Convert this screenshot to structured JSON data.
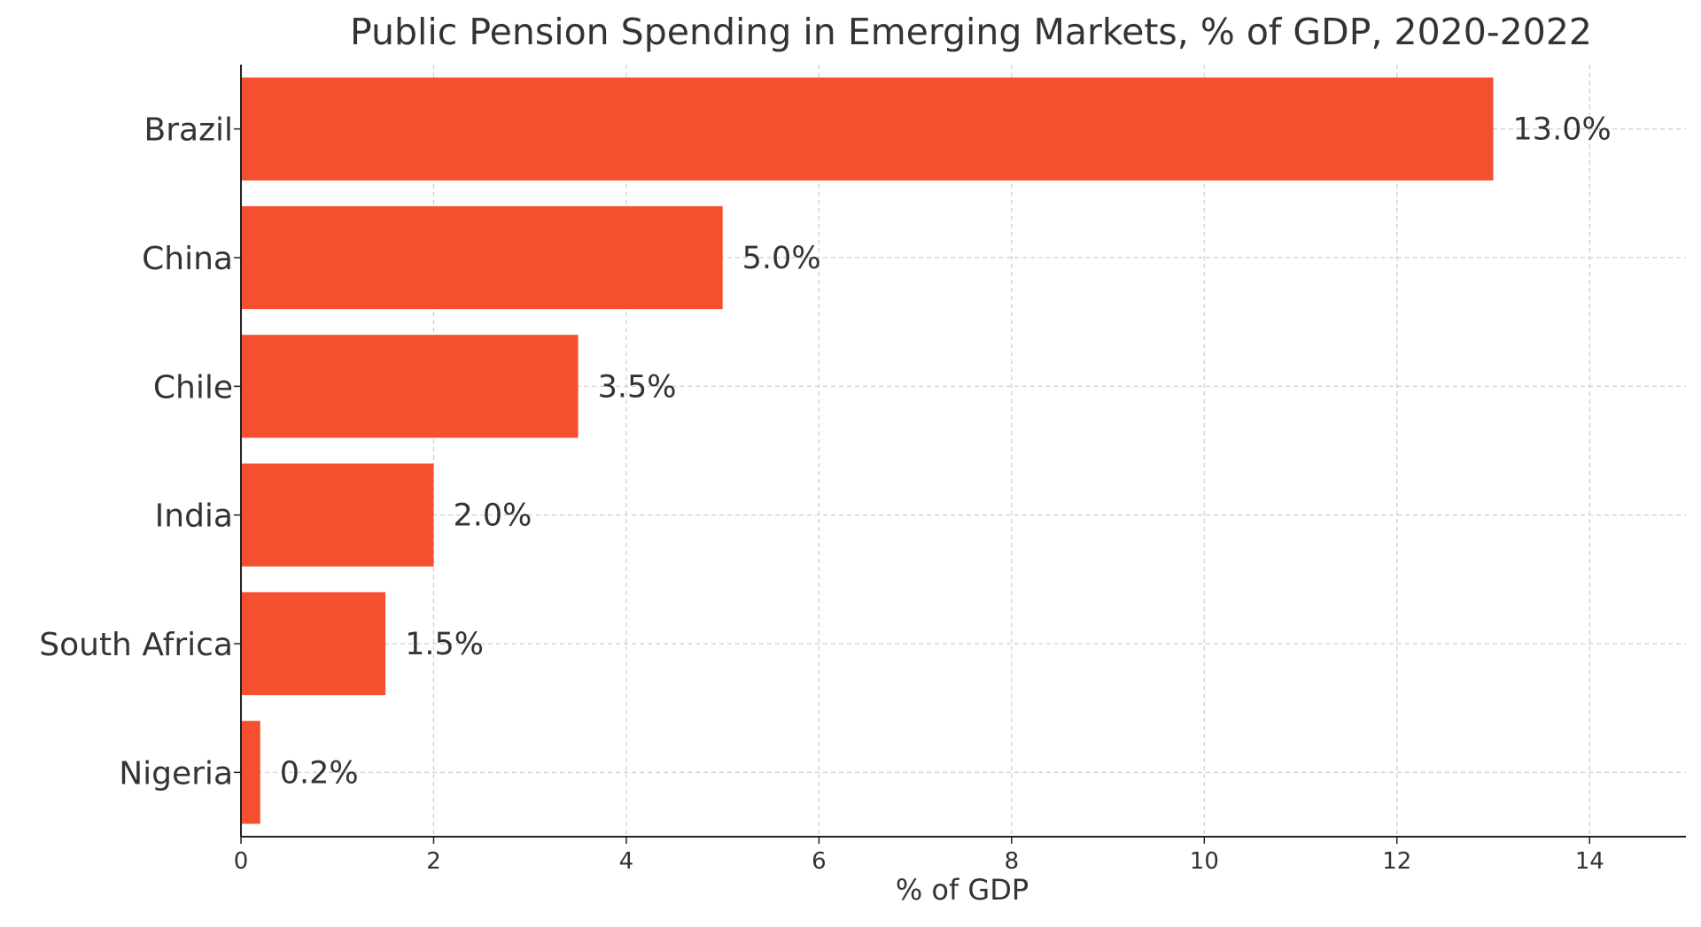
{
  "chart_data": {
    "type": "bar",
    "orientation": "horizontal",
    "title": "Public Pension Spending in Emerging Markets, % of GDP, 2020-2022",
    "xlabel": "% of GDP",
    "ylabel": "",
    "categories": [
      "Brazil",
      "China",
      "Chile",
      "India",
      "South Africa",
      "Nigeria"
    ],
    "values": [
      13.0,
      5.0,
      3.5,
      2.0,
      1.5,
      0.2
    ],
    "value_labels": [
      "13.0%",
      "5.0%",
      "3.5%",
      "2.0%",
      "1.5%",
      "0.2%"
    ],
    "xlim": [
      0,
      15
    ],
    "xticks": [
      0,
      2,
      4,
      6,
      8,
      10,
      12,
      14
    ],
    "grid": true,
    "legend": "none",
    "bar_color": "#f44f2f",
    "grid_color": "#cccccc",
    "axis_color": "#222222",
    "text_color": "#333333"
  }
}
